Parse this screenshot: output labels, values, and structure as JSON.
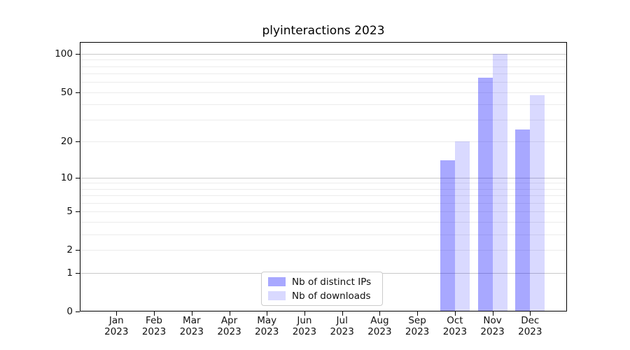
{
  "chart_data": {
    "type": "bar",
    "title": "plyinteractions 2023",
    "categories": [
      "Jan",
      "Feb",
      "Mar",
      "Apr",
      "May",
      "Jun",
      "Jul",
      "Aug",
      "Sep",
      "Oct",
      "Nov",
      "Dec"
    ],
    "year_label": "2023",
    "series": [
      {
        "name": "Nb of distinct IPs",
        "key": "distinct-ips",
        "color": "rgba(0,0,255,0.34)",
        "hex_on_white": "#a8a8ff",
        "values": [
          0,
          0,
          0,
          0,
          0,
          0,
          0,
          0,
          0,
          14,
          65,
          25
        ]
      },
      {
        "name": "Nb of downloads",
        "key": "downloads",
        "color": "rgba(0,0,255,0.15)",
        "hex_on_white": "#d9d9ff",
        "values": [
          0,
          0,
          0,
          0,
          0,
          0,
          0,
          0,
          0,
          20,
          100,
          47
        ]
      }
    ],
    "yscale": "log10(1+value)",
    "ylim": [
      0,
      124
    ],
    "ytick_values": [
      0,
      1,
      2,
      5,
      10,
      20,
      50,
      100
    ],
    "ytick_labels": [
      "0",
      "1",
      "2",
      "5",
      "10",
      "20",
      "50",
      "100"
    ],
    "major_grid_values": [
      1,
      10,
      100
    ],
    "minor_grid_values": [
      2,
      3,
      4,
      5,
      6,
      7,
      8,
      9,
      20,
      30,
      40,
      50,
      60,
      70,
      80,
      90
    ],
    "grid": true,
    "legend_position": "lower center",
    "colors": {
      "grid_major": "#c9c9c9",
      "grid_minor": "#ececec",
      "axis": "#000000",
      "background": "#ffffff",
      "text": "#111111"
    }
  }
}
